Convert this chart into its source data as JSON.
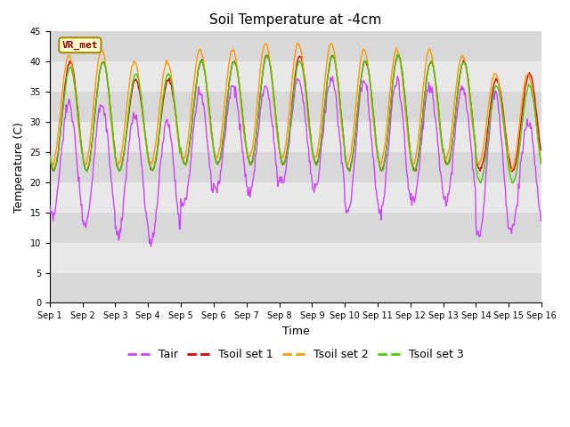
{
  "title": "Soil Temperature at -4cm",
  "xlabel": "Time",
  "ylabel": "Temperature (C)",
  "ylim": [
    0,
    45
  ],
  "yticks": [
    0,
    5,
    10,
    15,
    20,
    25,
    30,
    35,
    40,
    45
  ],
  "background_color": "#ffffff",
  "plot_bg_color": "#e8e8e8",
  "band_colors": [
    "#d8d8d8",
    "#e8e8e8"
  ],
  "tair_color": "#cc44ff",
  "tsoil1_color": "#dd0000",
  "tsoil2_color": "#ff9900",
  "tsoil3_color": "#44cc00",
  "legend_labels": [
    "Tair",
    "Tsoil set 1",
    "Tsoil set 2",
    "Tsoil set 3"
  ],
  "annotation_text": "VR_met",
  "annotation_bg": "#ffffcc",
  "annotation_border": "#aa8800",
  "days": 15,
  "hours_per_day": 24,
  "dt_hours": 0.5
}
